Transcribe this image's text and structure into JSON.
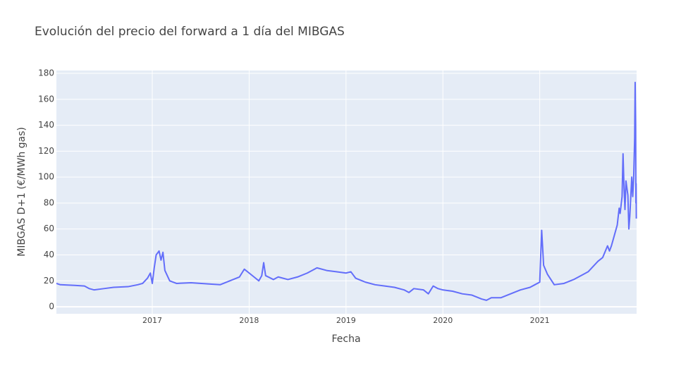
{
  "chart_data": {
    "type": "line",
    "title": "Evolución del precio del forward a 1 día del MIBGAS",
    "x_label": "Fecha",
    "y_label": "MIBGAS D+1 (€/MWh gas)",
    "xlim": [
      2016.01,
      2022.0
    ],
    "xticks": [
      2017,
      2018,
      2019,
      2020,
      2021
    ],
    "ylim": [
      -5.4,
      182.2
    ],
    "yticks": [
      0,
      20,
      40,
      60,
      80,
      100,
      120,
      140,
      160,
      180
    ],
    "grid": true,
    "series": [
      {
        "color": "#636efa",
        "x": [
          2016.01,
          2016.05,
          2016.2,
          2016.3,
          2016.35,
          2016.4,
          2016.5,
          2016.6,
          2016.75,
          2016.85,
          2016.9,
          2016.95,
          2016.98,
          2017.0,
          2017.02,
          2017.04,
          2017.07,
          2017.09,
          2017.11,
          2017.13,
          2017.18,
          2017.25,
          2017.4,
          2017.6,
          2017.7,
          2017.8,
          2017.9,
          2017.95,
          2018.0,
          2018.05,
          2018.1,
          2018.13,
          2018.15,
          2018.17,
          2018.25,
          2018.3,
          2018.4,
          2018.5,
          2018.6,
          2018.7,
          2018.8,
          2018.9,
          2019.0,
          2019.05,
          2019.1,
          2019.2,
          2019.3,
          2019.4,
          2019.5,
          2019.6,
          2019.65,
          2019.7,
          2019.8,
          2019.85,
          2019.9,
          2019.95,
          2020.0,
          2020.1,
          2020.2,
          2020.3,
          2020.4,
          2020.45,
          2020.5,
          2020.6,
          2020.7,
          2020.8,
          2020.9,
          2020.95,
          2021.0,
          2021.02,
          2021.04,
          2021.08,
          2021.15,
          2021.25,
          2021.35,
          2021.45,
          2021.5,
          2021.6,
          2021.65,
          2021.7,
          2021.72,
          2021.74,
          2021.77,
          2021.8,
          2021.82,
          2021.83,
          2021.85,
          2021.86,
          2021.87,
          2021.88,
          2021.89,
          2021.91,
          2021.92,
          2021.93,
          2021.95,
          2021.96,
          2021.97,
          2021.98,
          2021.985,
          2021.99,
          2021.993,
          2021.995,
          2021.997
        ],
        "values": [
          18,
          17,
          16.5,
          16,
          14,
          13,
          14,
          15,
          15.5,
          17,
          18,
          22,
          26,
          18,
          30,
          40,
          43,
          36,
          42,
          28,
          20,
          18,
          18.5,
          17.5,
          17,
          20,
          23,
          29,
          26,
          23,
          20,
          24,
          34,
          24,
          21,
          23,
          21,
          23,
          26,
          30,
          28,
          27,
          26,
          27,
          22,
          19,
          17,
          16,
          15,
          13,
          11,
          14,
          13,
          10,
          16,
          14,
          13,
          12,
          10,
          9,
          6,
          5,
          7,
          7,
          10,
          13,
          15,
          17,
          19,
          59,
          32,
          25,
          17,
          18,
          21,
          25,
          27,
          35,
          38,
          47,
          43,
          47,
          55,
          63,
          76,
          72,
          85,
          118,
          92,
          75,
          97,
          86,
          60,
          70,
          100,
          85,
          100,
          130,
          173,
          140,
          80,
          95,
          68
        ]
      }
    ]
  }
}
